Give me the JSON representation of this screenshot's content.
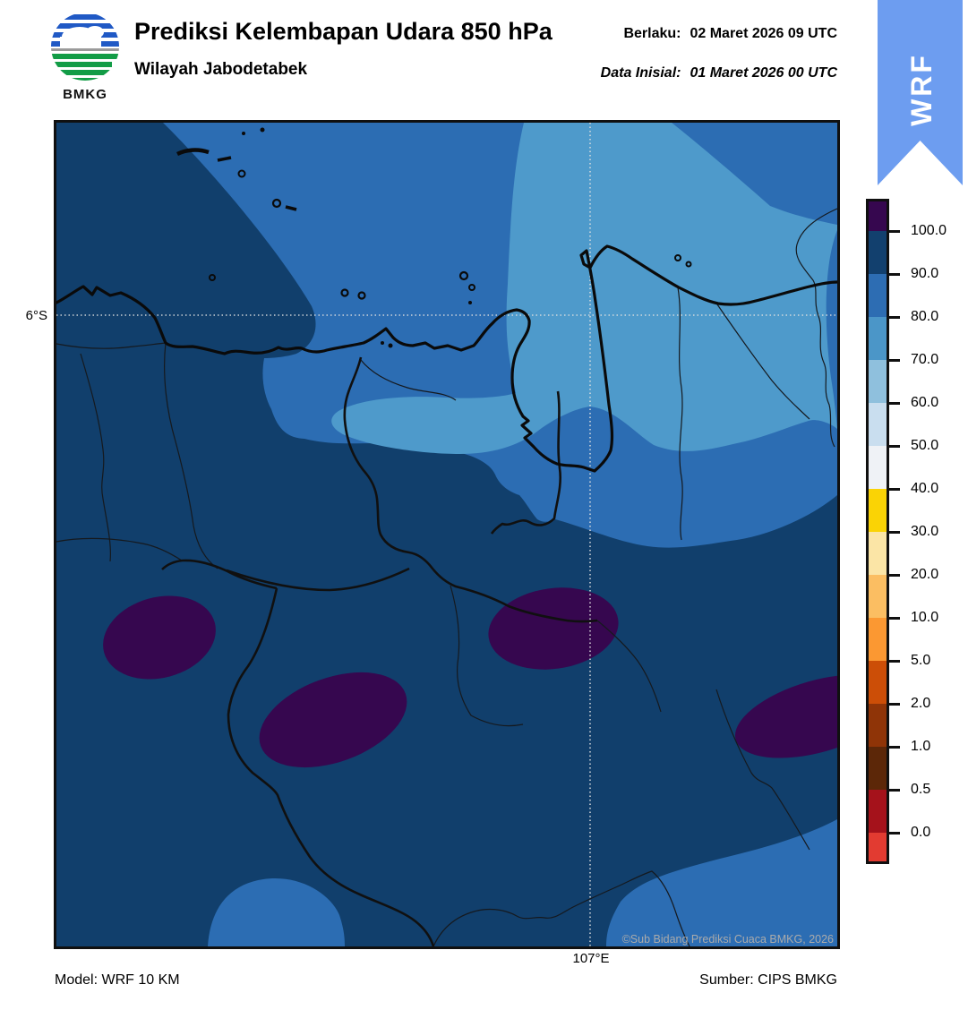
{
  "header": {
    "logo_text": "BMKG",
    "title": "Prediksi Kelembapan Udara 850 hPa",
    "subtitle": "Wilayah Jabodetabek",
    "valid_label": "Berlaku:",
    "valid_value": "02 Maret 2026 09 UTC",
    "init_label": "Data Inisial:",
    "init_value": "01 Maret 2026 00 UTC"
  },
  "ribbon": {
    "label": "WRF",
    "color": "#6D9DF0"
  },
  "map": {
    "lat_label": "6°S",
    "lon_label": "107°E",
    "copyright": "©Sub Bidang Prediksi Cuaca BMKG, 2026",
    "colors": {
      "rh_100_plus": "#36074F",
      "rh_90_100": "#113F6C",
      "rh_80_90": "#2C6DB3",
      "rh_70_80": "#4E9ACB"
    }
  },
  "colorbar": {
    "tick_labels": [
      "100.0",
      "90.0",
      "80.0",
      "70.0",
      "60.0",
      "50.0",
      "40.0",
      "30.0",
      "20.0",
      "10.0",
      "5.0",
      "2.0",
      "1.0",
      "0.5",
      "0.0"
    ],
    "segment_colors": [
      "#36074F",
      "#12406E",
      "#2D6DB3",
      "#4B96C8",
      "#8FC0DD",
      "#C9DEEF",
      "#EFF2F6",
      "#FAD305",
      "#FBE5A6",
      "#FBBE62",
      "#FB9832",
      "#CC4E07",
      "#8F3407",
      "#5C2708",
      "#A5121B",
      "#E23B31"
    ]
  },
  "footer": {
    "model": "Model: WRF 10 KM",
    "source": "Sumber: CIPS BMKG"
  }
}
